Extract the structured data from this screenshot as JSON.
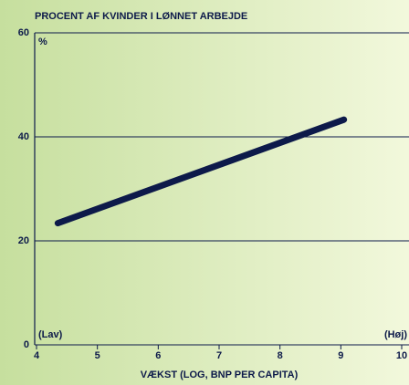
{
  "chart_data": {
    "type": "line",
    "title": "PROCENT AF KVINDER I LØNNET ARBEJDE",
    "y_unit": "%",
    "xlabel": "VÆKST (LOG, BNP PER CAPITA)",
    "annotations": [
      "(Lav)",
      "(Høj)"
    ],
    "x": [
      4.35,
      9.05
    ],
    "values": [
      23.4,
      43.3
    ],
    "color": "#0d1a4a",
    "xlim": [
      4,
      10
    ],
    "xticks": [
      4,
      5,
      6,
      7,
      8,
      9,
      10
    ],
    "ylim": [
      0,
      60
    ],
    "yticks": [
      0,
      20,
      40,
      60
    ],
    "grid": true
  }
}
